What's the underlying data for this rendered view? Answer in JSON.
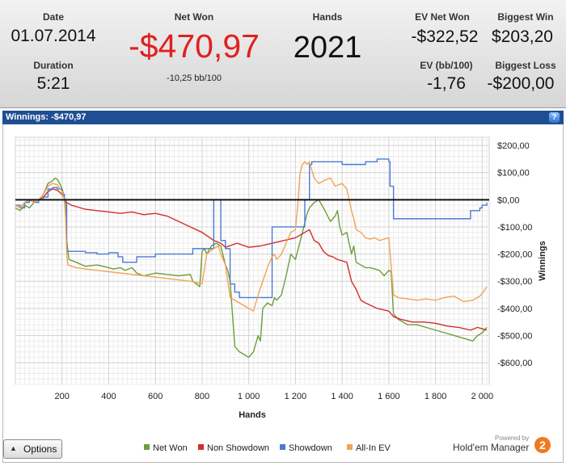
{
  "summary": {
    "date_label": "Date",
    "date_value": "01.07.2014",
    "duration_label": "Duration",
    "duration_value": "5:21",
    "net_won_label": "Net Won",
    "net_won_value": "-$470,97",
    "net_won_sub": "-10,25 bb/100",
    "hands_label": "Hands",
    "hands_value": "2021",
    "ev_net_won_label": "EV Net Won",
    "ev_net_won_value": "-$322,52",
    "ev_bb_label": "EV (bb/100)",
    "ev_bb_value": "-1,76",
    "biggest_win_label": "Biggest Win",
    "biggest_win_value": "$203,20",
    "biggest_loss_label": "Biggest Loss",
    "biggest_loss_value": "-$200,00"
  },
  "panel": {
    "title": "Winnings: -$470,97",
    "help": "?"
  },
  "options_button": {
    "label": "Options",
    "caret": "▲"
  },
  "branding": {
    "powered_by": "Powered by",
    "product": "Hold'em Manager",
    "badge": "2"
  },
  "colors": {
    "net_won": "#6e9e3a",
    "non_showdown": "#d62b2b",
    "showdown": "#4a78d4",
    "all_in_ev": "#f0a552",
    "negative": "#e02020"
  },
  "chart_data": {
    "type": "line",
    "xlabel": "Hands",
    "ylabel": "Winnings",
    "xlim": [
      0,
      2030
    ],
    "ylim": [
      -680,
      230
    ],
    "xticks": [
      200,
      400,
      600,
      800,
      1000,
      1200,
      1400,
      1600,
      1800,
      2000
    ],
    "xtick_labels": [
      "200",
      "400",
      "600",
      "800",
      "1 000",
      "1 200",
      "1 400",
      "1 600",
      "1 800",
      "2 000"
    ],
    "yticks": [
      200,
      100,
      0,
      -100,
      -200,
      -300,
      -400,
      -500,
      -600
    ],
    "ytick_labels": [
      "$200,00",
      "$100,00",
      "$0,00",
      "-$100,00",
      "-$200,00",
      "-$300,00",
      "-$400,00",
      "-$500,00",
      "-$600,00"
    ],
    "grid": true,
    "legend_position": "bottom",
    "series": [
      {
        "name": "Net Won",
        "color": "#6e9e3a",
        "step": false,
        "x": [
          0,
          20,
          40,
          60,
          80,
          100,
          120,
          140,
          160,
          170,
          180,
          190,
          200,
          210,
          215,
          220,
          225,
          230,
          260,
          300,
          350,
          400,
          420,
          450,
          470,
          500,
          520,
          550,
          600,
          650,
          700,
          750,
          760,
          790,
          800,
          810,
          820,
          840,
          860,
          880,
          900,
          910,
          920,
          930,
          940,
          960,
          980,
          1000,
          1020,
          1040,
          1050,
          1060,
          1080,
          1100,
          1110,
          1120,
          1140,
          1160,
          1180,
          1200,
          1230,
          1250,
          1260,
          1270,
          1280,
          1300,
          1320,
          1350,
          1370,
          1380,
          1390,
          1400,
          1420,
          1440,
          1450,
          1460,
          1480,
          1500,
          1520,
          1540,
          1560,
          1580,
          1600,
          1610,
          1620,
          1640,
          1680,
          1720,
          1760,
          1800,
          1840,
          1880,
          1920,
          1960,
          1980,
          2000,
          2010,
          2020
        ],
        "y": [
          -30,
          -40,
          -20,
          -30,
          -10,
          0,
          20,
          60,
          70,
          80,
          75,
          60,
          40,
          10,
          -20,
          -150,
          -190,
          -220,
          -230,
          -245,
          -240,
          -250,
          -255,
          -250,
          -260,
          -250,
          -270,
          -280,
          -270,
          -275,
          -280,
          -275,
          -300,
          -320,
          -190,
          -180,
          -200,
          -170,
          -160,
          -170,
          -240,
          -260,
          -300,
          -420,
          -540,
          -560,
          -570,
          -580,
          -560,
          -500,
          -520,
          -400,
          -380,
          -390,
          -360,
          -370,
          -350,
          -280,
          -200,
          -220,
          -120,
          -50,
          -30,
          -20,
          -10,
          0,
          -30,
          -80,
          -60,
          -40,
          -100,
          -130,
          -120,
          -200,
          -170,
          -230,
          -240,
          -250,
          -250,
          -255,
          -260,
          -280,
          -260,
          -265,
          -420,
          -440,
          -460,
          -460,
          -470,
          -480,
          -490,
          -500,
          -510,
          -520,
          -500,
          -490,
          -480,
          -470
        ]
      },
      {
        "name": "Non Showdown",
        "color": "#d62b2b",
        "step": false,
        "x": [
          0,
          20,
          40,
          60,
          80,
          100,
          120,
          140,
          160,
          180,
          200,
          220,
          240,
          260,
          300,
          350,
          400,
          450,
          500,
          550,
          600,
          650,
          700,
          750,
          800,
          850,
          880,
          900,
          950,
          1000,
          1050,
          1100,
          1150,
          1200,
          1220,
          1240,
          1260,
          1280,
          1300,
          1320,
          1340,
          1360,
          1380,
          1400,
          1420,
          1440,
          1460,
          1480,
          1500,
          1550,
          1600,
          1610,
          1620,
          1650,
          1700,
          1750,
          1800,
          1850,
          1900,
          1950,
          1980,
          2000,
          2020
        ],
        "y": [
          -20,
          -30,
          -10,
          0,
          -10,
          0,
          10,
          30,
          40,
          35,
          20,
          -10,
          -20,
          -25,
          -35,
          -40,
          -45,
          -50,
          -45,
          -55,
          -50,
          -60,
          -80,
          -100,
          -120,
          -150,
          -160,
          -175,
          -160,
          -175,
          -170,
          -160,
          -150,
          -140,
          -130,
          -120,
          -110,
          -150,
          -160,
          -190,
          -205,
          -210,
          -220,
          -225,
          -230,
          -300,
          -330,
          -370,
          -380,
          -400,
          -410,
          -420,
          -430,
          -440,
          -450,
          -450,
          -455,
          -465,
          -470,
          -480,
          -470,
          -475,
          -480
        ]
      },
      {
        "name": "Showdown",
        "color": "#4a78d4",
        "step": true,
        "x": [
          0,
          20,
          40,
          60,
          80,
          100,
          120,
          140,
          160,
          180,
          200,
          210,
          220,
          260,
          300,
          350,
          400,
          440,
          460,
          500,
          520,
          600,
          700,
          760,
          800,
          820,
          850,
          860,
          880,
          900,
          920,
          940,
          960,
          980,
          1000,
          1020,
          1060,
          1100,
          1120,
          1180,
          1200,
          1220,
          1240,
          1260,
          1270,
          1280,
          1300,
          1400,
          1450,
          1500,
          1550,
          1600,
          1605,
          1620,
          1700,
          1800,
          1850,
          1900,
          1950,
          1990,
          2000,
          2020
        ],
        "y": [
          -20,
          -30,
          -10,
          0,
          -10,
          0,
          10,
          40,
          45,
          40,
          20,
          -10,
          -190,
          -190,
          -195,
          -200,
          -195,
          -210,
          -230,
          -230,
          -210,
          -200,
          -200,
          -180,
          -180,
          -180,
          0,
          0,
          -150,
          -180,
          -310,
          -340,
          -360,
          -360,
          -360,
          -360,
          -360,
          -100,
          -100,
          -100,
          -100,
          -100,
          0,
          130,
          140,
          140,
          140,
          130,
          130,
          140,
          150,
          140,
          50,
          -70,
          -70,
          -70,
          -70,
          -70,
          -40,
          -30,
          -20,
          -10
        ]
      },
      {
        "name": "All-In EV",
        "color": "#f0a552",
        "step": false,
        "x": [
          0,
          20,
          40,
          60,
          80,
          100,
          120,
          140,
          160,
          180,
          200,
          210,
          215,
          220,
          225,
          260,
          300,
          350,
          400,
          450,
          500,
          550,
          600,
          650,
          700,
          750,
          800,
          820,
          850,
          870,
          880,
          900,
          920,
          940,
          960,
          1000,
          1020,
          1040,
          1060,
          1080,
          1100,
          1110,
          1120,
          1140,
          1150,
          1180,
          1200,
          1210,
          1220,
          1230,
          1240,
          1250,
          1260,
          1280,
          1300,
          1320,
          1350,
          1370,
          1400,
          1420,
          1440,
          1450,
          1460,
          1480,
          1500,
          1520,
          1540,
          1560,
          1580,
          1600,
          1605,
          1620,
          1640,
          1680,
          1720,
          1760,
          1800,
          1840,
          1880,
          1920,
          1960,
          1990,
          2000,
          2020
        ],
        "y": [
          -20,
          -30,
          -10,
          0,
          -10,
          0,
          20,
          50,
          60,
          55,
          30,
          0,
          -60,
          -200,
          -240,
          -250,
          -255,
          -260,
          -265,
          -270,
          -275,
          -280,
          -285,
          -290,
          -295,
          -300,
          -310,
          -200,
          -180,
          -170,
          -200,
          -240,
          -360,
          -370,
          -380,
          -400,
          -410,
          -350,
          -300,
          -250,
          -210,
          -200,
          -220,
          -200,
          -180,
          -120,
          -110,
          -20,
          100,
          130,
          140,
          130,
          140,
          80,
          60,
          70,
          80,
          50,
          60,
          40,
          -40,
          -70,
          -110,
          -120,
          -140,
          -145,
          -140,
          -150,
          -145,
          -140,
          -190,
          -350,
          -360,
          -365,
          -370,
          -365,
          -370,
          -360,
          -355,
          -375,
          -370,
          -355,
          -345,
          -320
        ]
      }
    ]
  }
}
